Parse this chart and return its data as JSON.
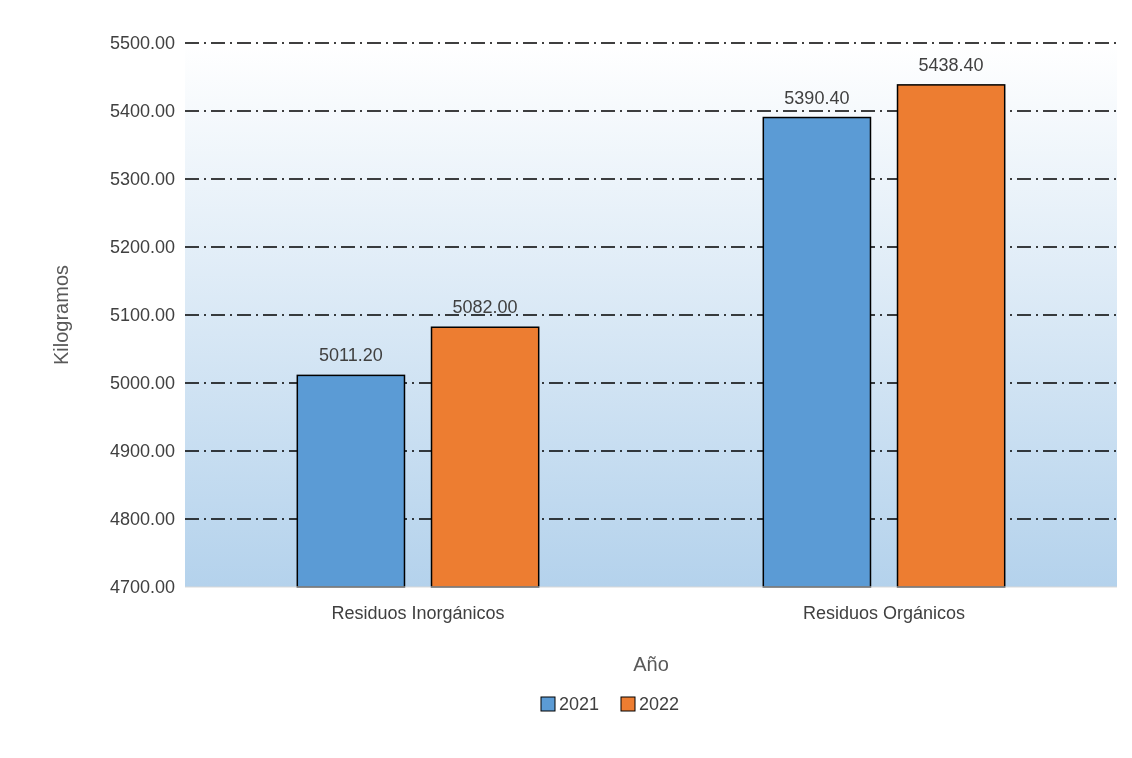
{
  "chart_data": {
    "type": "bar",
    "xlabel": "Año",
    "ylabel": "Kilogramos",
    "categories": [
      "Residuos Inorgánicos",
      "Residuos Orgánicos"
    ],
    "series": [
      {
        "name": "2021",
        "color": "#5b9bd5",
        "values": [
          5011.2,
          5390.4
        ]
      },
      {
        "name": "2022",
        "color": "#ed7d31",
        "values": [
          5082,
          5438.4
        ]
      }
    ],
    "ylim": [
      4700,
      5500
    ],
    "yticks": [
      {
        "value": 4700,
        "label": "4700.00"
      },
      {
        "value": 4800,
        "label": "4800.00"
      },
      {
        "value": 4900,
        "label": "4900.00"
      },
      {
        "value": 5000,
        "label": "5000.00"
      },
      {
        "value": 5100,
        "label": "5100.00"
      },
      {
        "value": 5200,
        "label": "5200.00"
      },
      {
        "value": 5300,
        "label": "5300.00"
      },
      {
        "value": 5400,
        "label": "5400.00"
      },
      {
        "value": 5500,
        "label": "5500.00"
      }
    ],
    "value_labels": [
      [
        "5011.20",
        "5390.40"
      ],
      [
        "5082.00",
        "5438.40"
      ]
    ],
    "grid": "y",
    "legend": "bottom"
  }
}
